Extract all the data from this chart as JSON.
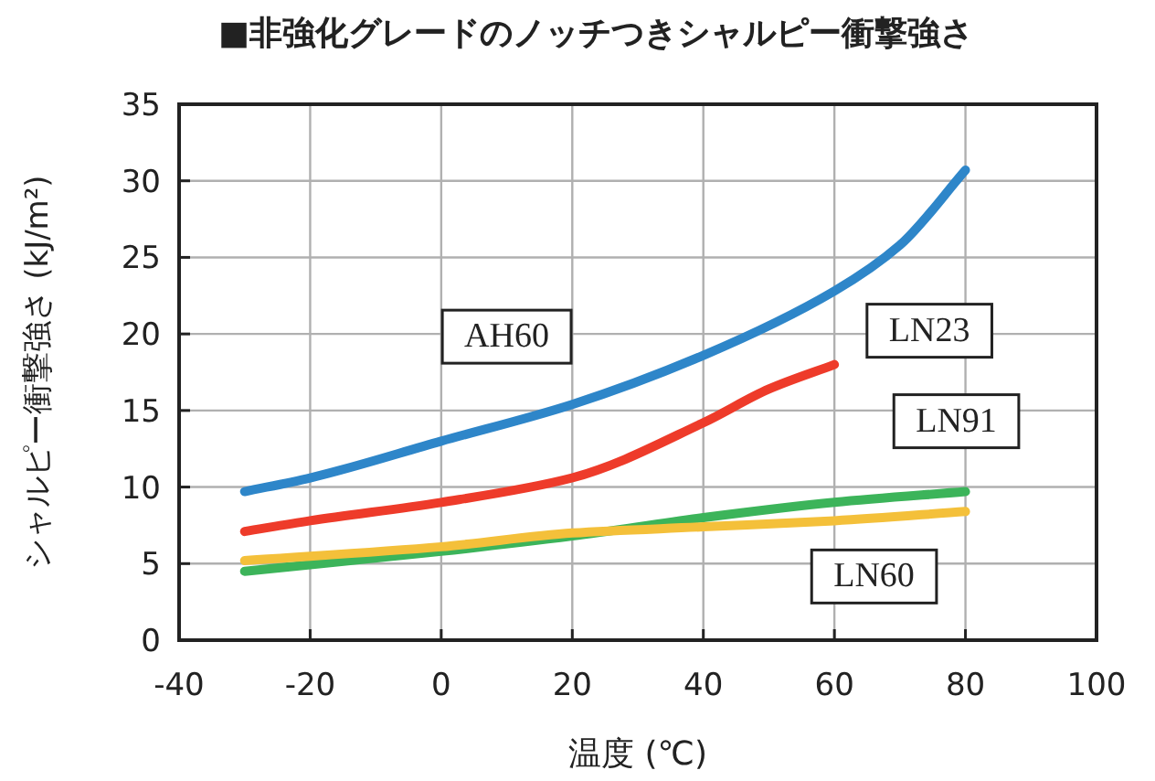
{
  "chart_data": {
    "type": "line",
    "title": "■非強化グレードのノッチつきシャルピー衝撃強さ",
    "xlabel": "温度 (℃)",
    "ylabel": "シャルピー衝撃強さ (kJ/m²)",
    "xlim": [
      -40,
      100
    ],
    "xticks": [
      -40,
      -20,
      0,
      20,
      40,
      60,
      80,
      100
    ],
    "ylim": [
      0,
      35
    ],
    "yticks": [
      0,
      5,
      10,
      15,
      20,
      25,
      30,
      35
    ],
    "grid": true,
    "marker": "none",
    "line_style": "solid",
    "series": [
      {
        "name": "AH60",
        "color": "#2e86c9",
        "x": [
          -30,
          -20,
          0,
          20,
          40,
          60,
          70,
          80
        ],
        "values": [
          9.7,
          10.6,
          13.0,
          15.4,
          18.6,
          22.8,
          25.8,
          30.7
        ]
      },
      {
        "name": "LN23",
        "color": "#ee3b2a",
        "x": [
          -30,
          -20,
          0,
          20,
          40,
          50,
          60
        ],
        "values": [
          7.1,
          7.8,
          9.0,
          10.6,
          14.2,
          16.4,
          18.0
        ]
      },
      {
        "name": "LN91",
        "color": "#3cb45a",
        "x": [
          -30,
          0,
          20,
          40,
          60,
          80
        ],
        "values": [
          4.5,
          5.8,
          6.8,
          8.0,
          9.0,
          9.7
        ]
      },
      {
        "name": "LN60",
        "color": "#f4c03a",
        "x": [
          -30,
          0,
          20,
          40,
          60,
          80
        ],
        "values": [
          5.2,
          6.1,
          7.0,
          7.4,
          7.8,
          8.4
        ]
      }
    ]
  }
}
